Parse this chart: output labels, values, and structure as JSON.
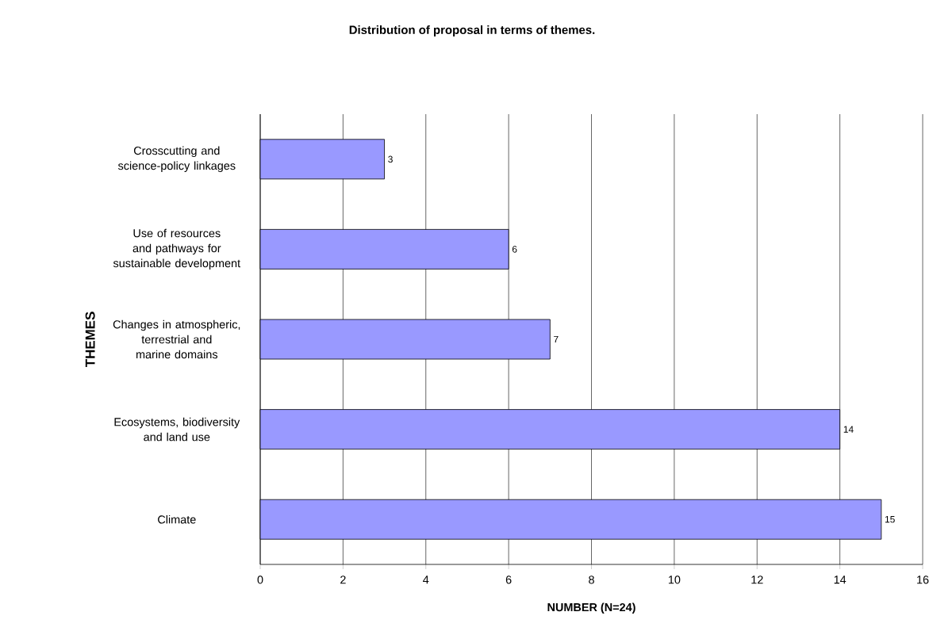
{
  "chart_data": {
    "type": "bar",
    "orientation": "horizontal",
    "title": "Distribution of proposal in terms of themes.",
    "xlabel": "NUMBER (N=24)",
    "ylabel": "THEMES",
    "categories": [
      "Crosscutting and science-policy linkages",
      "Use of resources and pathways for sustainable development",
      "Changes in atmospheric, terrestrial and marine domains",
      "Ecosystems, biodiversity and land use",
      "Climate"
    ],
    "values": [
      3,
      6,
      7,
      14,
      15
    ],
    "color": "#9999ff",
    "data_labels": true,
    "xlim": [
      0,
      16
    ],
    "xticks": [
      0,
      2,
      4,
      6,
      8,
      10,
      12,
      14,
      16
    ],
    "grid": "x"
  }
}
